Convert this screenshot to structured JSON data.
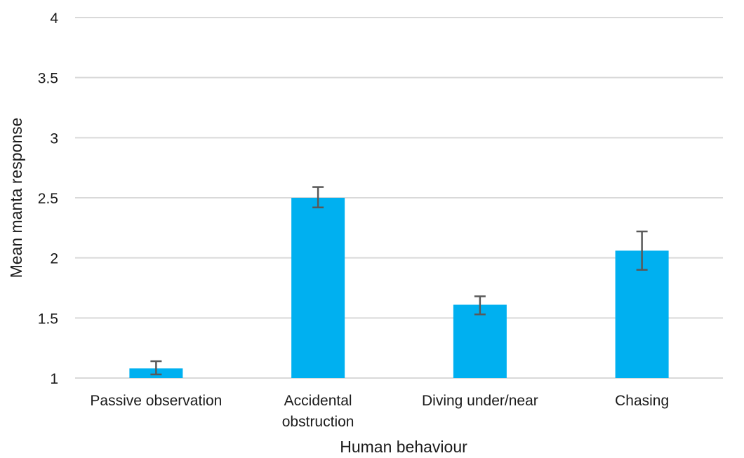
{
  "chart_data": {
    "type": "bar",
    "categories": [
      [
        "Passive observation"
      ],
      [
        "Accidental",
        "obstruction"
      ],
      [
        "Diving under/near"
      ],
      [
        "Chasing"
      ]
    ],
    "values": [
      1.08,
      2.5,
      1.61,
      2.06
    ],
    "error_low": [
      1.03,
      2.42,
      1.53,
      1.9
    ],
    "error_high": [
      1.14,
      2.59,
      1.68,
      2.22
    ],
    "xlabel": "Human behaviour",
    "ylabel": "Mean manta response",
    "ylim": [
      1,
      4
    ],
    "yticks": [
      "1",
      "1.5",
      "2",
      "2.5",
      "3",
      "3.5",
      "4"
    ],
    "grid": true,
    "legend": "none",
    "bar_color": "#00b0f0",
    "error_bar_color": "#595959"
  }
}
